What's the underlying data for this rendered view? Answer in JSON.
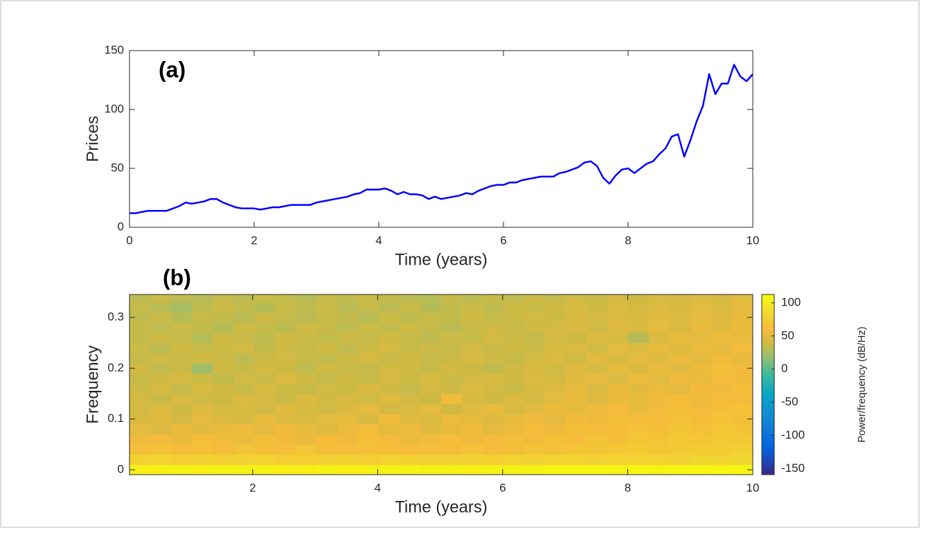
{
  "chart_data": [
    {
      "type": "line",
      "annotation": "(a)",
      "xlabel": "Time (years)",
      "ylabel": "Prices",
      "x": [
        0,
        0.1,
        0.2,
        0.3,
        0.4,
        0.5,
        0.6,
        0.7,
        0.8,
        0.9,
        1,
        1.1,
        1.2,
        1.3,
        1.4,
        1.5,
        1.6,
        1.7,
        1.8,
        1.9,
        2,
        2.1,
        2.2,
        2.3,
        2.4,
        2.5,
        2.6,
        2.7,
        2.8,
        2.9,
        3,
        3.1,
        3.2,
        3.3,
        3.4,
        3.5,
        3.6,
        3.7,
        3.8,
        3.9,
        4,
        4.1,
        4.2,
        4.3,
        4.4,
        4.5,
        4.6,
        4.7,
        4.8,
        4.9,
        5,
        5.1,
        5.2,
        5.3,
        5.4,
        5.5,
        5.6,
        5.7,
        5.8,
        5.9,
        6,
        6.1,
        6.2,
        6.3,
        6.4,
        6.5,
        6.6,
        6.7,
        6.8,
        6.9,
        7,
        7.1,
        7.2,
        7.3,
        7.4,
        7.5,
        7.6,
        7.7,
        7.8,
        7.9,
        8,
        8.1,
        8.2,
        8.3,
        8.4,
        8.5,
        8.6,
        8.7,
        8.8,
        8.9,
        9,
        9.1,
        9.2,
        9.3,
        9.4,
        9.5,
        9.6,
        9.7,
        9.8,
        9.9,
        10
      ],
      "series": [
        {
          "color": "#0000ff",
          "values": [
            12,
            12,
            13,
            14,
            14,
            14,
            14,
            16,
            18,
            21,
            20,
            21,
            22,
            24,
            24,
            21,
            19,
            17,
            16,
            16,
            16,
            15,
            16,
            17,
            17,
            18,
            19,
            19,
            19,
            19,
            21,
            22,
            23,
            24,
            25,
            26,
            28,
            29,
            32,
            32,
            32,
            33,
            31,
            28,
            30,
            28,
            28,
            27,
            24,
            26,
            24,
            25,
            26,
            27,
            29,
            28,
            31,
            33,
            35,
            36,
            36,
            38,
            38,
            40,
            41,
            42,
            43,
            43,
            43,
            46,
            47,
            49,
            51,
            55,
            56,
            52,
            42,
            37,
            44,
            49,
            50,
            46,
            50,
            54,
            56,
            62,
            67,
            77,
            79,
            60,
            74,
            90,
            103,
            130,
            113,
            122,
            122,
            138,
            128,
            124,
            130
          ]
        }
      ],
      "xlim": [
        0,
        10
      ],
      "ylim": [
        0,
        150
      ],
      "xticks": [
        0,
        2,
        4,
        6,
        8,
        10
      ],
      "yticks": [
        0,
        50,
        100,
        150
      ]
    },
    {
      "type": "heatmap",
      "annotation": "(b)",
      "xlabel": "Time (years)",
      "ylabel": "Frequency",
      "colormap": "parula",
      "colorbar_label": "Power/frequency (dB/Hz)",
      "x": [
        0.2,
        0.53,
        0.86,
        1.19,
        1.53,
        1.86,
        2.19,
        2.52,
        2.86,
        3.19,
        3.52,
        3.85,
        4.18,
        4.52,
        4.85,
        5.18,
        5.51,
        5.85,
        6.18,
        6.51,
        6.84,
        7.17,
        7.51,
        7.84,
        8.17,
        8.5,
        8.84,
        9.17,
        9.5,
        9.83
      ],
      "y": [
        0,
        0.02,
        0.04,
        0.06,
        0.08,
        0.1,
        0.12,
        0.14,
        0.16,
        0.18,
        0.2,
        0.22,
        0.24,
        0.26,
        0.28,
        0.3,
        0.32,
        0.34
      ],
      "z": [
        [
          104,
          104,
          105,
          104,
          105,
          104,
          105,
          104,
          104,
          105,
          104,
          104,
          105,
          105,
          104,
          105,
          104,
          105,
          105,
          106,
          108,
          108,
          108,
          107,
          108,
          107,
          108,
          108,
          109,
          108
        ],
        [
          78,
          80,
          76,
          79,
          77,
          78,
          80,
          77,
          76,
          78,
          79,
          77,
          80,
          78,
          76,
          79,
          78,
          77,
          80,
          79,
          81,
          80,
          78,
          82,
          80,
          81,
          79,
          83,
          82,
          84
        ],
        [
          62,
          65,
          60,
          64,
          58,
          66,
          63,
          61,
          67,
          62,
          60,
          64,
          62,
          59,
          63,
          61,
          65,
          60,
          62,
          66,
          64,
          68,
          66,
          70,
          72,
          68,
          71,
          74,
          73,
          76
        ],
        [
          55,
          58,
          52,
          60,
          56,
          54,
          62,
          57,
          53,
          59,
          55,
          61,
          58,
          54,
          57,
          60,
          55,
          58,
          61,
          57,
          63,
          60,
          65,
          62,
          68,
          66,
          70,
          67,
          72,
          70
        ],
        [
          50,
          46,
          54,
          48,
          52,
          55,
          49,
          57,
          51,
          47,
          53,
          58,
          50,
          55,
          48,
          52,
          56,
          50,
          54,
          59,
          55,
          62,
          58,
          60,
          64,
          61,
          66,
          63,
          68,
          65
        ],
        [
          44,
          48,
          42,
          50,
          46,
          43,
          52,
          47,
          45,
          49,
          51,
          44,
          56,
          48,
          46,
          53,
          50,
          47,
          52,
          55,
          50,
          57,
          54,
          62,
          58,
          60,
          63,
          59,
          65,
          62
        ],
        [
          40,
          45,
          38,
          47,
          42,
          44,
          39,
          48,
          43,
          41,
          46,
          50,
          42,
          45,
          49,
          40,
          47,
          52,
          44,
          48,
          53,
          50,
          55,
          58,
          52,
          57,
          61,
          56,
          62,
          64
        ],
        [
          42,
          36,
          44,
          40,
          38,
          46,
          42,
          37,
          45,
          40,
          43,
          39,
          47,
          41,
          38,
          56,
          44,
          40,
          46,
          42,
          49,
          52,
          47,
          54,
          51,
          56,
          58,
          55,
          60,
          58
        ],
        [
          38,
          42,
          35,
          44,
          40,
          37,
          43,
          39,
          36,
          41,
          38,
          44,
          40,
          35,
          42,
          39,
          45,
          41,
          37,
          44,
          47,
          50,
          45,
          52,
          48,
          54,
          50,
          57,
          55,
          60
        ],
        [
          36,
          40,
          42,
          38,
          34,
          41,
          37,
          45,
          39,
          35,
          40,
          36,
          42,
          38,
          43,
          37,
          41,
          44,
          39,
          46,
          42,
          48,
          51,
          46,
          53,
          49,
          55,
          52,
          58,
          56
        ],
        [
          40,
          34,
          38,
          22,
          39,
          36,
          42,
          38,
          33,
          40,
          37,
          35,
          41,
          39,
          36,
          42,
          38,
          34,
          40,
          44,
          41,
          47,
          43,
          50,
          46,
          52,
          48,
          54,
          62,
          57
        ],
        [
          35,
          39,
          36,
          40,
          37,
          33,
          38,
          41,
          36,
          34,
          39,
          42,
          37,
          40,
          35,
          38,
          43,
          39,
          36,
          42,
          45,
          40,
          48,
          44,
          50,
          47,
          53,
          49,
          56,
          52
        ],
        [
          37,
          32,
          40,
          35,
          38,
          41,
          34,
          39,
          36,
          40,
          33,
          38,
          42,
          36,
          39,
          35,
          41,
          37,
          40,
          38,
          43,
          46,
          41,
          49,
          45,
          51,
          47,
          54,
          50,
          58
        ],
        [
          34,
          38,
          35,
          30,
          39,
          36,
          33,
          40,
          37,
          34,
          38,
          35,
          40,
          36,
          33,
          39,
          36,
          41,
          38,
          35,
          42,
          38,
          46,
          43,
          30,
          45,
          52,
          48,
          55,
          51
        ],
        [
          36,
          33,
          37,
          34,
          30,
          38,
          35,
          32,
          39,
          36,
          33,
          37,
          34,
          38,
          35,
          32,
          37,
          40,
          36,
          39,
          41,
          44,
          40,
          47,
          43,
          49,
          45,
          52,
          48,
          54
        ],
        [
          33,
          37,
          30,
          36,
          34,
          31,
          38,
          35,
          32,
          36,
          34,
          30,
          37,
          33,
          36,
          34,
          39,
          35,
          38,
          41,
          38,
          44,
          42,
          46,
          44,
          48,
          46,
          50,
          47,
          52
        ],
        [
          35,
          31,
          25,
          33,
          37,
          34,
          30,
          36,
          33,
          37,
          31,
          35,
          32,
          36,
          30,
          34,
          37,
          33,
          38,
          36,
          40,
          43,
          39,
          45,
          42,
          47,
          44,
          49,
          46,
          50
        ],
        [
          32,
          36,
          33,
          30,
          35,
          32,
          36,
          34,
          31,
          35,
          33,
          37,
          34,
          31,
          30,
          35,
          32,
          36,
          33,
          38,
          35,
          40,
          37,
          42,
          39,
          44,
          41,
          46,
          43,
          48
        ]
      ],
      "xlim": [
        0.03,
        10
      ],
      "ylim": [
        -0.0095,
        0.345
      ],
      "xticks": [
        2,
        4,
        6,
        8,
        10
      ],
      "yticks": [
        0,
        0.1,
        0.2,
        0.3
      ],
      "clim": [
        -159,
        112.5
      ],
      "cticks": [
        -150,
        -100,
        -50,
        0,
        50,
        100
      ]
    }
  ]
}
